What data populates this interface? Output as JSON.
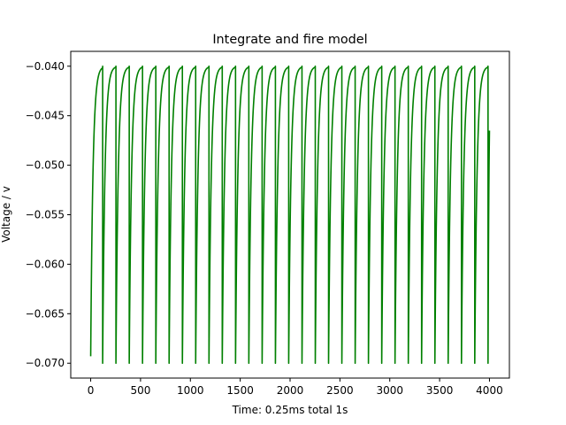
{
  "chart_data": {
    "type": "line",
    "title": "Integrate and fire model",
    "xlabel": "Time: 0.25ms total 1s",
    "ylabel": "Voltage / v",
    "xlim": [
      -200,
      4200
    ],
    "ylim": [
      -0.0715,
      -0.0385
    ],
    "x_ticks": [
      0,
      500,
      1000,
      1500,
      2000,
      2500,
      3000,
      3500,
      4000
    ],
    "x_tick_labels": [
      "0",
      "500",
      "1000",
      "1500",
      "2000",
      "2500",
      "3000",
      "3500",
      "4000"
    ],
    "y_ticks": [
      -0.07,
      -0.065,
      -0.06,
      -0.055,
      -0.05,
      -0.045,
      -0.04
    ],
    "y_tick_labels": [
      "−0.070",
      "−0.065",
      "−0.060",
      "−0.055",
      "−0.050",
      "−0.045",
      "−0.040"
    ],
    "grid": false,
    "legend": "none",
    "series": [
      {
        "color": "#008000",
        "v_start": -0.0693,
        "v_reset": -0.07,
        "v_threshold": -0.04,
        "first_spike_x": 120,
        "spike_period": 133.3,
        "last_x": 4000,
        "last_y": -0.0465,
        "decay_constant": 23
      }
    ]
  }
}
